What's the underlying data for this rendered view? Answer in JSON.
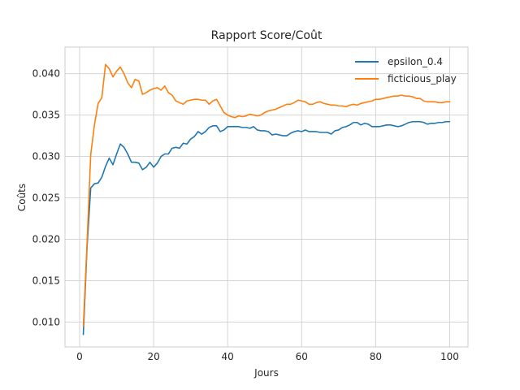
{
  "chart_data": {
    "type": "line",
    "title": "Rapport Score/Coût",
    "xlabel": "Jours",
    "ylabel": "Coûts",
    "xlim": [
      -3.95,
      104.95
    ],
    "ylim": [
      0.007,
      0.0432
    ],
    "x_ticks": [
      0,
      20,
      40,
      60,
      80,
      100
    ],
    "x_tick_labels": [
      "0",
      "20",
      "40",
      "60",
      "80",
      "100"
    ],
    "y_ticks": [
      0.01,
      0.015,
      0.02,
      0.025,
      0.03,
      0.035,
      0.04
    ],
    "y_tick_labels": [
      "0.010",
      "0.015",
      "0.020",
      "0.025",
      "0.030",
      "0.035",
      "0.040"
    ],
    "grid": true,
    "legend_position": "top-right",
    "x": [
      1,
      2,
      3,
      4,
      5,
      6,
      7,
      8,
      9,
      10,
      11,
      12,
      13,
      14,
      15,
      16,
      17,
      18,
      19,
      20,
      21,
      22,
      23,
      24,
      25,
      26,
      27,
      28,
      29,
      30,
      31,
      32,
      33,
      34,
      35,
      36,
      37,
      38,
      39,
      40,
      41,
      42,
      43,
      44,
      45,
      46,
      47,
      48,
      49,
      50,
      51,
      52,
      53,
      54,
      55,
      56,
      57,
      58,
      59,
      60,
      61,
      62,
      63,
      64,
      65,
      66,
      67,
      68,
      69,
      70,
      71,
      72,
      73,
      74,
      75,
      76,
      77,
      78,
      79,
      80,
      81,
      82,
      83,
      84,
      85,
      86,
      87,
      88,
      89,
      90,
      91,
      92,
      93,
      94,
      95,
      96,
      97,
      98,
      99,
      100
    ],
    "series": [
      {
        "name": "epsilon_0.4",
        "color": "#1f77b4",
        "values": [
          0.0085,
          0.019,
          0.0262,
          0.0267,
          0.0268,
          0.0275,
          0.0288,
          0.0298,
          0.029,
          0.0303,
          0.0315,
          0.0311,
          0.0303,
          0.0293,
          0.0293,
          0.0292,
          0.0284,
          0.0287,
          0.0293,
          0.0287,
          0.0292,
          0.03,
          0.0303,
          0.0303,
          0.031,
          0.0311,
          0.031,
          0.0316,
          0.0315,
          0.0321,
          0.0324,
          0.033,
          0.0327,
          0.033,
          0.0335,
          0.0337,
          0.0337,
          0.033,
          0.0332,
          0.0336,
          0.0336,
          0.0336,
          0.0336,
          0.0335,
          0.0335,
          0.0334,
          0.0336,
          0.0332,
          0.0331,
          0.0331,
          0.033,
          0.0326,
          0.0327,
          0.0326,
          0.0325,
          0.0325,
          0.0328,
          0.033,
          0.0331,
          0.033,
          0.0332,
          0.033,
          0.033,
          0.033,
          0.0329,
          0.0329,
          0.0329,
          0.0327,
          0.0331,
          0.0332,
          0.0335,
          0.0336,
          0.0338,
          0.0341,
          0.0341,
          0.0338,
          0.034,
          0.0339,
          0.0336,
          0.0336,
          0.0336,
          0.0337,
          0.0338,
          0.0338,
          0.0337,
          0.0336,
          0.0337,
          0.0339,
          0.0341,
          0.0342,
          0.0342,
          0.0342,
          0.0341,
          0.0339,
          0.034,
          0.034,
          0.0341,
          0.0341,
          0.0342,
          0.0342
        ]
      },
      {
        "name": "ficticious_play",
        "color": "#ff7f0e",
        "values": [
          0.0095,
          0.0195,
          0.0302,
          0.0338,
          0.0364,
          0.0371,
          0.0411,
          0.0406,
          0.0396,
          0.0403,
          0.0408,
          0.04,
          0.0389,
          0.0383,
          0.0393,
          0.0391,
          0.0375,
          0.0377,
          0.038,
          0.0382,
          0.0383,
          0.038,
          0.0385,
          0.0377,
          0.0374,
          0.0367,
          0.0365,
          0.0363,
          0.0367,
          0.0368,
          0.0369,
          0.0369,
          0.0368,
          0.0368,
          0.0363,
          0.0367,
          0.0369,
          0.0361,
          0.0353,
          0.035,
          0.0348,
          0.0347,
          0.0349,
          0.0348,
          0.0349,
          0.0351,
          0.035,
          0.0349,
          0.035,
          0.0353,
          0.0355,
          0.0356,
          0.0357,
          0.0359,
          0.0361,
          0.0363,
          0.0363,
          0.0365,
          0.0368,
          0.0367,
          0.0366,
          0.0363,
          0.0363,
          0.0365,
          0.0366,
          0.0364,
          0.0363,
          0.0362,
          0.0362,
          0.0361,
          0.0361,
          0.036,
          0.0362,
          0.0363,
          0.0362,
          0.0364,
          0.0365,
          0.0366,
          0.0367,
          0.0369,
          0.0369,
          0.037,
          0.0371,
          0.0372,
          0.0373,
          0.0373,
          0.0374,
          0.0373,
          0.0373,
          0.0372,
          0.037,
          0.037,
          0.0367,
          0.0366,
          0.0366,
          0.0366,
          0.0365,
          0.0365,
          0.0366,
          0.0366
        ]
      }
    ]
  }
}
